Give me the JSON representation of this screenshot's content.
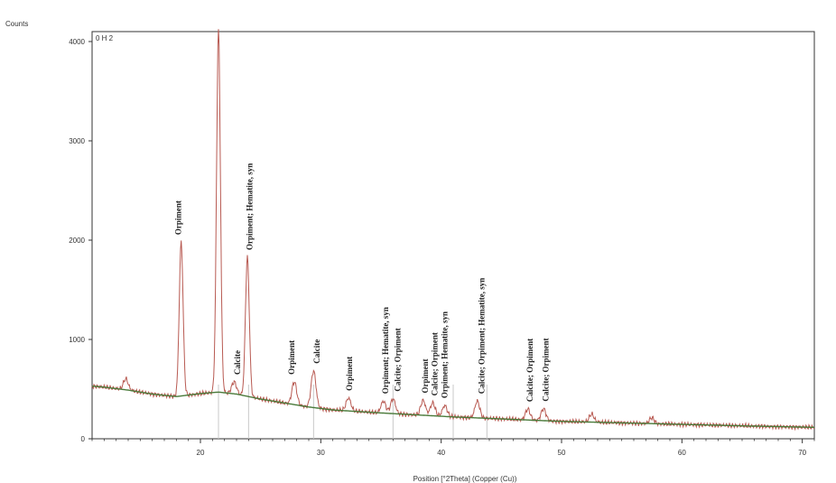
{
  "chart_data": {
    "type": "line",
    "ylabel": "Counts",
    "xlabel": "Position [°2Theta] (Copper (Cu))",
    "inset_label": "0 H 2",
    "xlim": [
      11,
      71
    ],
    "ylim": [
      0,
      4100
    ],
    "x_ticks": [
      20,
      30,
      40,
      50,
      60,
      70
    ],
    "y_ticks": [
      0,
      1000,
      2000,
      3000,
      4000
    ],
    "grid": false,
    "colors": {
      "pattern": "#b85a52",
      "background_fit": "#4a7a3a",
      "reference_lines": "#c8c8c8",
      "frame": "#333333"
    },
    "baseline": {
      "x": [
        11,
        12,
        14,
        16,
        18,
        20,
        21.5,
        23,
        25,
        27,
        29,
        31,
        33,
        35,
        38,
        41,
        45,
        50,
        55,
        60,
        65,
        71
      ],
      "y": [
        530,
        520,
        490,
        450,
        425,
        455,
        470,
        450,
        400,
        360,
        320,
        290,
        275,
        260,
        240,
        220,
        200,
        175,
        160,
        145,
        130,
        115
      ]
    },
    "peaks": [
      {
        "x": 13.8,
        "y": 110
      },
      {
        "x": 18.4,
        "y": 1550
      },
      {
        "x": 21.5,
        "y": 3650
      },
      {
        "x": 22.8,
        "y": 120
      },
      {
        "x": 23.9,
        "y": 1400
      },
      {
        "x": 27.8,
        "y": 230
      },
      {
        "x": 29.4,
        "y": 370
      },
      {
        "x": 32.3,
        "y": 130
      },
      {
        "x": 35.2,
        "y": 120
      },
      {
        "x": 36.0,
        "y": 150
      },
      {
        "x": 38.5,
        "y": 150
      },
      {
        "x": 39.3,
        "y": 130
      },
      {
        "x": 40.3,
        "y": 110
      },
      {
        "x": 43.0,
        "y": 170
      },
      {
        "x": 47.2,
        "y": 110
      },
      {
        "x": 48.5,
        "y": 120
      },
      {
        "x": 52.5,
        "y": 80
      },
      {
        "x": 57.5,
        "y": 60
      }
    ],
    "reference_lines_x": [
      21.5,
      24.0,
      29.4,
      36.0,
      41.0,
      43.8
    ],
    "annotations": [
      {
        "x": 18.4,
        "text": "Orpiment"
      },
      {
        "x": 23.3,
        "text": "Calcite"
      },
      {
        "x": 24.3,
        "text": "Orpiment; Hematite, syn"
      },
      {
        "x": 27.8,
        "text": "Orpiment"
      },
      {
        "x": 29.9,
        "text": "Calcite"
      },
      {
        "x": 32.6,
        "text": "Orpiment"
      },
      {
        "x": 35.6,
        "text": "Orpiment; Hematite, syn"
      },
      {
        "x": 36.6,
        "text": "Calcite; Orpiment"
      },
      {
        "x": 38.9,
        "text": "Orpiment"
      },
      {
        "x": 39.7,
        "text": "Calcite; Orpiment"
      },
      {
        "x": 40.5,
        "text": "Orpiment; Hematite, syn"
      },
      {
        "x": 43.6,
        "text": "Calcite; Orpiment; Hematite, syn"
      },
      {
        "x": 47.6,
        "text": "Calcite; Orpiment"
      },
      {
        "x": 48.9,
        "text": "Calcite; Orpiment"
      }
    ]
  }
}
